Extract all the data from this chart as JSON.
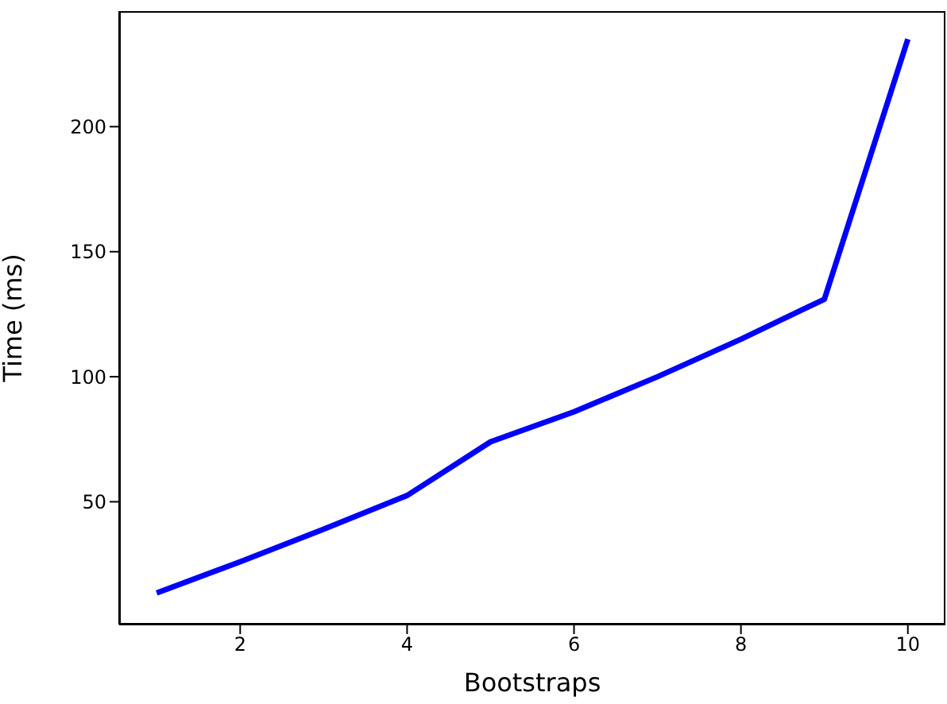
{
  "chart_data": {
    "type": "line",
    "xlabel": "Bootstraps",
    "ylabel": "Time (ms)",
    "x": [
      1,
      2,
      3,
      4,
      5,
      6,
      7,
      8,
      9,
      10
    ],
    "series": [
      {
        "color": "#0000ff",
        "values": [
          13.5,
          26,
          39,
          52.5,
          74,
          86,
          100,
          115,
          131,
          235
        ]
      }
    ],
    "xlim": [
      0.55,
      10.45
    ],
    "xticks": [
      2,
      4,
      6,
      8,
      10
    ],
    "ylim": [
      0.9,
      246.2
    ],
    "yticks": [
      50,
      100,
      150,
      200
    ]
  }
}
